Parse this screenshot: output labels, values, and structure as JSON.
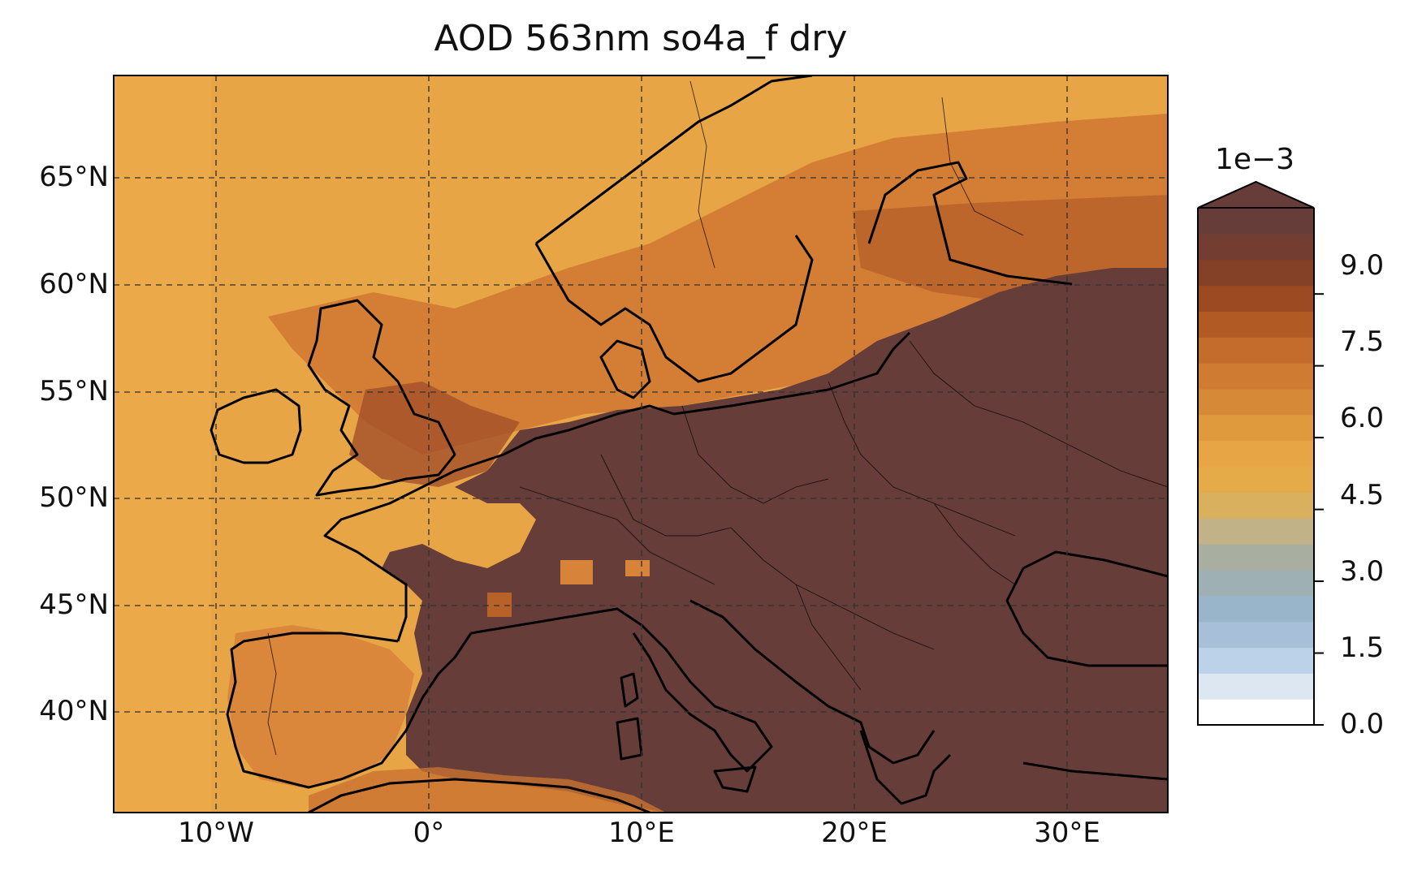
{
  "map": {
    "title": "AOD 563nm so4a_f dry",
    "lat_labels": [
      "65°N",
      "60°N",
      "55°N",
      "50°N",
      "45°N",
      "40°N"
    ],
    "lon_labels": [
      "10°W",
      "0°",
      "10°E",
      "20°E",
      "30°E"
    ],
    "gridlines": "dashed",
    "colors": {
      "ocean_background": "#E8A545",
      "north_sea_band": "#D27A33",
      "continent_high": "#673D3A",
      "coastline": "#000000",
      "borders": "#000000"
    }
  },
  "colorbar": {
    "scale_label": "1e−3",
    "tick_labels": [
      "0.0",
      "1.5",
      "3.0",
      "4.5",
      "6.0",
      "7.5",
      "9.0"
    ],
    "tick_values": [
      0.0,
      1.5,
      3.0,
      4.5,
      6.0,
      7.5,
      9.0
    ],
    "extend": "max",
    "colors": [
      "#ffffff",
      "#dde7f1",
      "#bcd2e8",
      "#a7bfd8",
      "#99b5c9",
      "#9fb0b5",
      "#a8aea0",
      "#c2b287",
      "#d8b05e",
      "#e4ab48",
      "#e8a545",
      "#e09a3e",
      "#d68a37",
      "#cf7b31",
      "#c46c2c",
      "#b15a24",
      "#9c4a22",
      "#854128",
      "#743d32",
      "#673d3a"
    ]
  }
}
